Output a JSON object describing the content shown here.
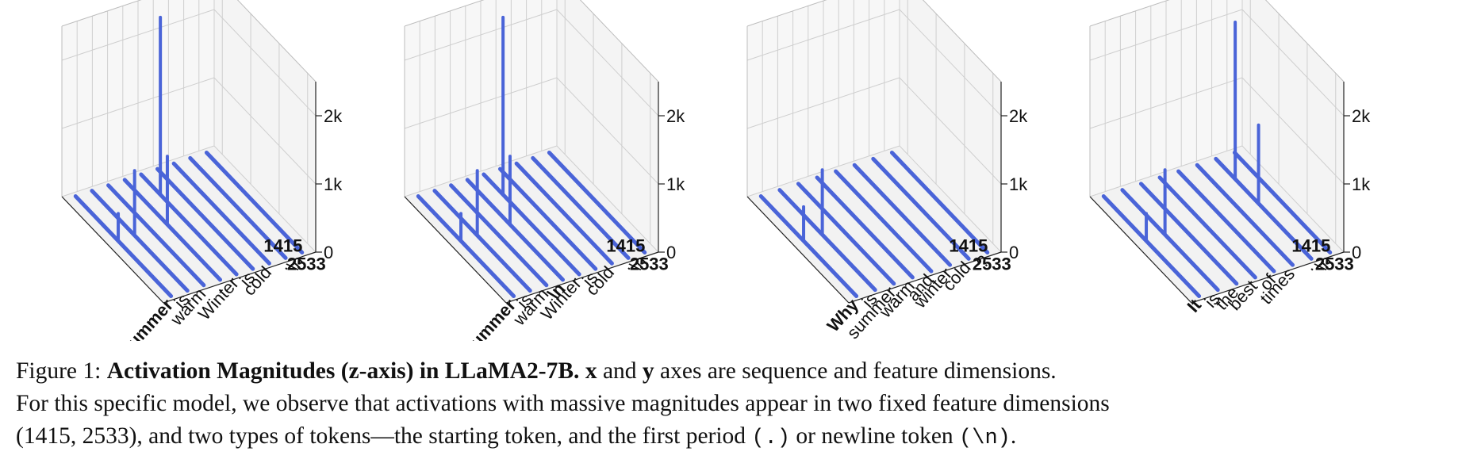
{
  "chart_data": [
    {
      "type": "3d-bar",
      "tokens": [
        "Summer",
        "is",
        "warm",
        ".",
        "Winter",
        "is",
        "cold",
        ".",
        "\\n"
      ],
      "bold_token_indices": [
        0
      ],
      "feature_ticks": [
        "1415",
        "2533"
      ],
      "z_ticks": [
        "0",
        "1k",
        "2k"
      ],
      "zlim": [
        0,
        2500
      ],
      "spikes": [
        {
          "token": 0,
          "feature": "1415",
          "value": 400
        },
        {
          "token": 1,
          "feature": "1415",
          "value": 950
        },
        {
          "token": 3,
          "feature": "1415",
          "value": 1000
        },
        {
          "token": 4,
          "feature": "2533",
          "value": 2600
        }
      ]
    },
    {
      "type": "3d-bar",
      "tokens": [
        "Summer",
        "is",
        "warm",
        "\\n",
        "Winter",
        "is",
        "cold",
        ".",
        "\\n"
      ],
      "bold_token_indices": [
        0,
        3
      ],
      "feature_ticks": [
        "1415",
        "2533"
      ],
      "z_ticks": [
        "0",
        "1k",
        "2k"
      ],
      "zlim": [
        0,
        2500
      ],
      "spikes": [
        {
          "token": 0,
          "feature": "1415",
          "value": 400
        },
        {
          "token": 1,
          "feature": "1415",
          "value": 950
        },
        {
          "token": 3,
          "feature": "1415",
          "value": 1000
        },
        {
          "token": 4,
          "feature": "2533",
          "value": 2600
        }
      ]
    },
    {
      "type": "3d-bar",
      "tokens": [
        "Why",
        "is",
        "summer",
        "warm",
        "and",
        "winter",
        "cold",
        "?"
      ],
      "bold_token_indices": [
        0
      ],
      "feature_ticks": [
        "1415",
        "2533"
      ],
      "z_ticks": [
        "0",
        "1k",
        "2k"
      ],
      "zlim": [
        0,
        2500
      ],
      "spikes": [
        {
          "token": 0,
          "feature": "1415",
          "value": 500
        },
        {
          "token": 1,
          "feature": "1415",
          "value": 950
        }
      ]
    },
    {
      "type": "3d-bar",
      "tokens": [
        "It",
        "is",
        "the",
        "best",
        "of",
        "times",
        ".",
        "\\n"
      ],
      "bold_token_indices": [
        0
      ],
      "feature_ticks": [
        "1415",
        "2533"
      ],
      "z_ticks": [
        "0",
        "1k",
        "2k"
      ],
      "zlim": [
        0,
        2500
      ],
      "spikes": [
        {
          "token": 0,
          "feature": "1415",
          "value": 400
        },
        {
          "token": 1,
          "feature": "1415",
          "value": 950
        },
        {
          "token": 6,
          "feature": "1415",
          "value": 1150
        },
        {
          "token": 6,
          "feature": "2533",
          "value": 2300
        }
      ]
    }
  ],
  "colors": {
    "line": "#4a64d8",
    "grid": "#cfcfcf",
    "pane_floor": "#f2f2f2",
    "pane_back": "#f7f7f7",
    "axis": "#222222"
  },
  "caption": {
    "prefix": "Figure 1: ",
    "bold_title": "Activation Magnitudes (z-axis) in LLaMA2-7B.",
    "x": "x",
    "and_1": " and ",
    "y": "y",
    "line1_rest": " axes are sequence and feature dimensions.",
    "line2": "For this specific model, we observe that activations with massive magnitudes appear in two fixed feature dimensions",
    "line3_a": "(1415, 2533), and two types of tokens—the starting token, and the first period ",
    "period_code": "(.)",
    "line3_b": " or newline token ",
    "newline_code": "(\\n)",
    "line3_c": "."
  }
}
